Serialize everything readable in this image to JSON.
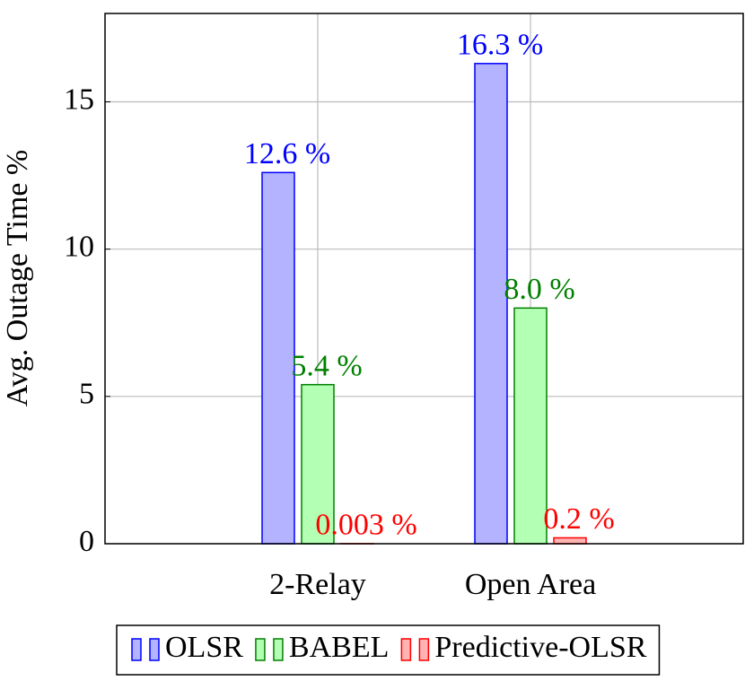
{
  "chart_data": {
    "type": "bar",
    "ylabel": "Avg. Outage Time %",
    "categories": [
      "2-Relay",
      "Open Area"
    ],
    "series": [
      {
        "name": "OLSR",
        "color": "#b3b3ff",
        "edgecolor": "#0000ff",
        "values": [
          12.6,
          16.3
        ],
        "value_labels": [
          "12.6 %",
          "16.3 %"
        ]
      },
      {
        "name": "BABEL",
        "color": "#b3ffb3",
        "edgecolor": "#008000",
        "values": [
          5.4,
          8.0
        ],
        "value_labels": [
          "5.4 %",
          "8.0 %"
        ]
      },
      {
        "name": "Predictive-OLSR",
        "color": "#ffb3b3",
        "edgecolor": "#ff0000",
        "values": [
          0.003,
          0.2
        ],
        "value_labels": [
          "0.003 %",
          "0.2 %"
        ]
      }
    ],
    "ylim": [
      0,
      18
    ],
    "yticks": [
      0,
      5,
      10,
      15
    ],
    "grid": true,
    "legend": "bottom"
  }
}
